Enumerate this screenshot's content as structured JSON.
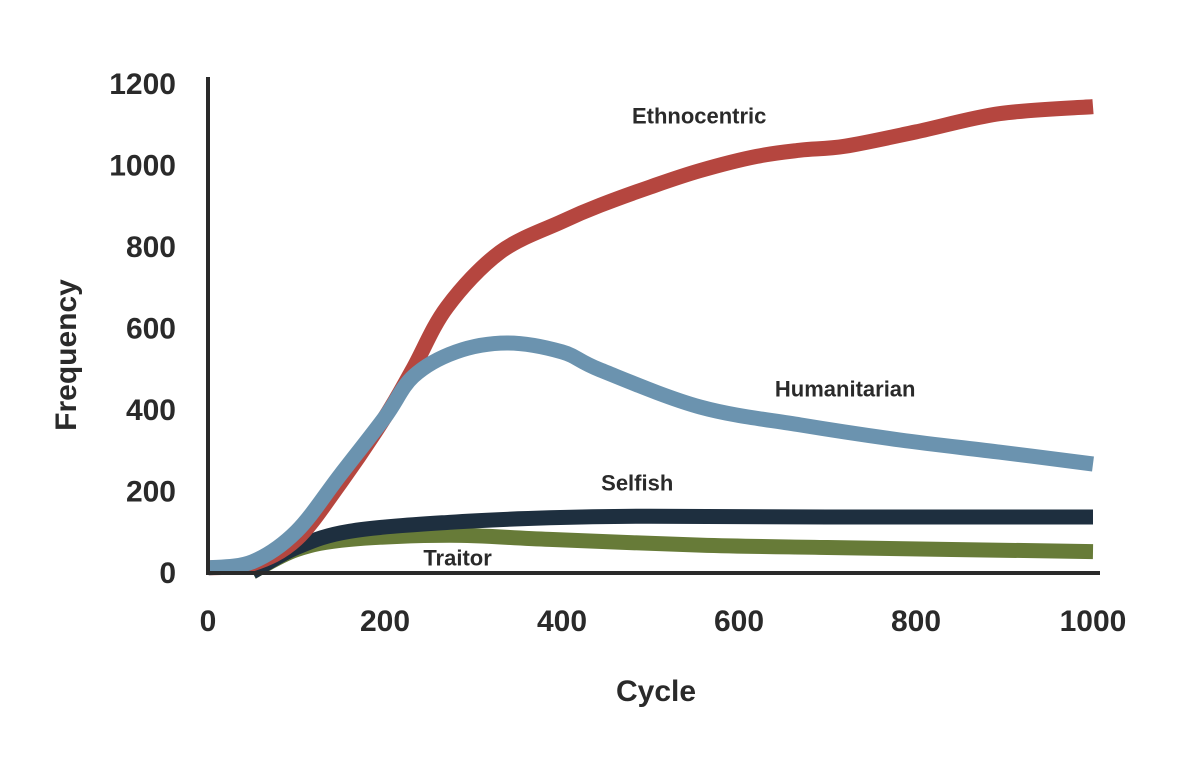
{
  "chart_data": {
    "type": "line",
    "title": "",
    "xlabel": "Cycle",
    "ylabel": "Frequency",
    "xlim": [
      0,
      1000
    ],
    "ylim": [
      0,
      1200
    ],
    "xticks": [
      "0",
      "200",
      "400",
      "600",
      "800",
      "1000"
    ],
    "yticks": [
      "0",
      "200",
      "400",
      "600",
      "800",
      "1000",
      "1200"
    ],
    "grid": false,
    "legend": "inline labels",
    "series": [
      {
        "name": "Ethnocentric",
        "color": "#b5463f",
        "points": [
          [
            0,
            10
          ],
          [
            50,
            20
          ],
          [
            100,
            80
          ],
          [
            150,
            220
          ],
          [
            200,
            380
          ],
          [
            232,
            500
          ],
          [
            270,
            650
          ],
          [
            330,
            785
          ],
          [
            400,
            860
          ],
          [
            443,
            900
          ],
          [
            500,
            945
          ],
          [
            556,
            985
          ],
          [
            620,
            1020
          ],
          [
            669,
            1035
          ],
          [
            720,
            1045
          ],
          [
            800,
            1080
          ],
          [
            895,
            1125
          ],
          [
            1000,
            1142
          ]
        ]
      },
      {
        "name": "Humanitarian",
        "color": "#6b93af",
        "points": [
          [
            0,
            10
          ],
          [
            50,
            25
          ],
          [
            100,
            100
          ],
          [
            150,
            240
          ],
          [
            200,
            380
          ],
          [
            232,
            480
          ],
          [
            280,
            540
          ],
          [
            338,
            562
          ],
          [
            400,
            540
          ],
          [
            443,
            496
          ],
          [
            556,
            405
          ],
          [
            669,
            361
          ],
          [
            782,
            324
          ],
          [
            895,
            294
          ],
          [
            1000,
            265
          ]
        ]
      },
      {
        "name": "Selfish",
        "color": "#1e2f3f",
        "points": [
          [
            50,
            0
          ],
          [
            100,
            60
          ],
          [
            160,
            100
          ],
          [
            273,
            122
          ],
          [
            386,
            133
          ],
          [
            500,
            137
          ],
          [
            700,
            135
          ],
          [
            1000,
            135
          ]
        ]
      },
      {
        "name": "Traitor",
        "color": "#677b38",
        "points": [
          [
            50,
            0
          ],
          [
            100,
            55
          ],
          [
            160,
            80
          ],
          [
            273,
            90
          ],
          [
            386,
            80
          ],
          [
            556,
            66
          ],
          [
            700,
            60
          ],
          [
            1000,
            50
          ]
        ]
      }
    ],
    "annotations": [
      {
        "text": "Ethnocentric",
        "series": "Ethnocentric",
        "at": [
          555,
          1120
        ]
      },
      {
        "text": "Humanitarian",
        "series": "Humanitarian",
        "at": [
          720,
          450
        ]
      },
      {
        "text": "Selfish",
        "series": "Selfish",
        "at": [
          485,
          220
        ]
      },
      {
        "text": "Traitor",
        "series": "Traitor",
        "at": [
          282,
          35
        ]
      }
    ]
  }
}
